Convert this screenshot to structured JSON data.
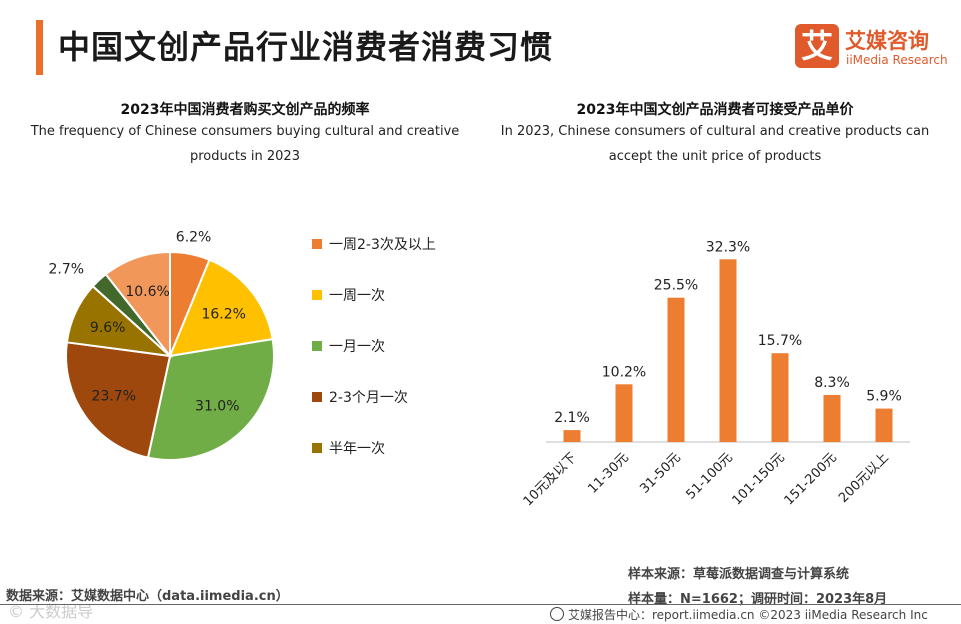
{
  "page": {
    "title": "中国文创产品行业消费者消费习惯",
    "logo_mark": "艾",
    "logo_cn": "艾媒咨询",
    "logo_en": "iiMedia Research"
  },
  "colors": {
    "accent": "#e8702a",
    "bar": "#ed7d31"
  },
  "chart_data": [
    {
      "type": "pie",
      "title": "2023年中国消费者购买文创产品的频率",
      "subtitle_line1": "The frequency of Chinese consumers buying cultural and creative",
      "subtitle_line2": "products in 2023",
      "slices": [
        {
          "label": "一周2-3次及以上",
          "value": 6.2,
          "display": "6.2%",
          "color": "#ed7d31"
        },
        {
          "label": "一周一次",
          "value": 16.2,
          "display": "16.2%",
          "color": "#ffc000"
        },
        {
          "label": "一月一次",
          "value": 31.0,
          "display": "31.0%",
          "color": "#70ad47"
        },
        {
          "label": "2-3个月一次",
          "value": 23.7,
          "display": "23.7%",
          "color": "#9e480e"
        },
        {
          "label": "半年一次",
          "value": 9.6,
          "display": "9.6%",
          "color": "#997300"
        },
        {
          "label": "",
          "value": 2.7,
          "display": "2.7%",
          "color": "#43682b"
        },
        {
          "label": "",
          "value": 10.6,
          "display": "10.6%",
          "color": "#f1975a"
        }
      ],
      "legend": [
        "一周2-3次及以上",
        "一周一次",
        "一月一次",
        "2-3个月一次",
        "半年一次"
      ],
      "legend_position": "right"
    },
    {
      "type": "bar",
      "title": "2023年中国文创产品消费者可接受产品单价",
      "subtitle_line1": "In 2023, Chinese consumers of cultural and creative products can",
      "subtitle_line2": "accept the unit price of products",
      "categories": [
        "10元及以下",
        "11-30元",
        "31-50元",
        "51-100元",
        "101-150元",
        "151-200元",
        "200元以上"
      ],
      "values": [
        2.1,
        10.2,
        25.5,
        32.3,
        15.7,
        8.3,
        5.9
      ],
      "value_labels": [
        "2.1%",
        "10.2%",
        "25.5%",
        "32.3%",
        "15.7%",
        "8.3%",
        "5.9%"
      ],
      "ylim": [
        0,
        35
      ],
      "grid": false
    }
  ],
  "sources": {
    "left": "数据来源：艾媒数据中心（data.iimedia.cn）",
    "watermark": "© 大数据导",
    "sample_source": "样本来源：草莓派数据调查与计算系统",
    "sample_size": "样本量：N=1662；调研时间：2023年8月",
    "footer": "艾媒报告中心：report.iimedia.cn   ©2023  iiMedia Research  Inc"
  }
}
